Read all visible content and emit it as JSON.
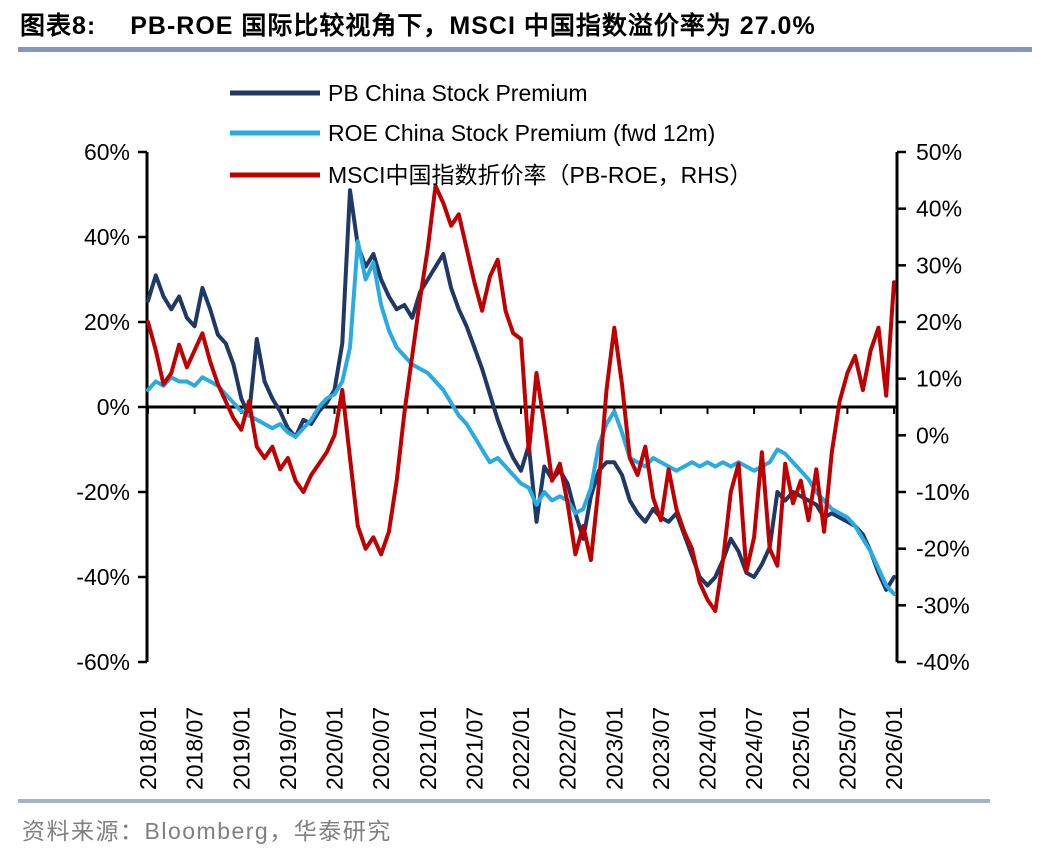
{
  "title": {
    "prefix": "图表8:",
    "text": "PB-ROE 国际比较视角下，MSCI 中国指数溢价率为 27.0%"
  },
  "source": {
    "label": "资料来源：Bloomberg，华泰研究"
  },
  "colors": {
    "pb_line": "#1F3864",
    "roe_line": "#29ABE2",
    "msci_line": "#C00000",
    "title_rule": "#8299B6",
    "bottom_rule": "#A3B5CB",
    "source_text": "#808080",
    "axis": "#000000"
  },
  "chart_data": {
    "type": "line",
    "title": "PB-ROE 国际比较视角下，MSCI 中国指数溢价率为 27.0%",
    "x_start": "2018/01",
    "x_interval": "monthly",
    "x_tick_labels": [
      "2018/01",
      "2018/07",
      "2019/01",
      "2019/07",
      "2020/01",
      "2020/07",
      "2021/01",
      "2021/07",
      "2022/01",
      "2022/07",
      "2023/01",
      "2023/07",
      "2024/01",
      "2024/07",
      "2025/01",
      "2025/07",
      "2026/01"
    ],
    "left_axis": {
      "tick_labels": [
        "60%",
        "40%",
        "20%",
        "0%",
        "-20%",
        "-40%",
        "-60%"
      ],
      "range": [
        -60,
        60
      ],
      "unit": "%"
    },
    "right_axis": {
      "tick_labels": [
        "50%",
        "40%",
        "30%",
        "20%",
        "10%",
        "0%",
        "-10%",
        "-20%",
        "-30%",
        "-40%"
      ],
      "range": [
        -40,
        50
      ],
      "unit": "%"
    },
    "grid": "off",
    "legend_position": "top",
    "series": [
      {
        "name": "PB China Stock Premium",
        "axis": "left",
        "color": "#1F3864",
        "values": [
          25,
          31,
          26,
          23,
          26,
          21,
          19,
          28,
          23,
          17,
          15,
          10,
          2,
          -2,
          16,
          6,
          2,
          -1,
          -5,
          -7,
          -3,
          -4,
          -1,
          1,
          4,
          15,
          51,
          38,
          33,
          36,
          30,
          26,
          23,
          24,
          21,
          27,
          30,
          33,
          36,
          28,
          23,
          19,
          14,
          9,
          3,
          -3,
          -8,
          -12,
          -15,
          -9,
          -27,
          -14,
          -17,
          -15,
          -18,
          -25,
          -31,
          -21,
          -15,
          -13,
          -13,
          -16,
          -22,
          -25,
          -27,
          -24,
          -26,
          -27,
          -25,
          -30,
          -35,
          -40,
          -42,
          -40,
          -36,
          -31,
          -34,
          -39,
          -40,
          -37,
          -33,
          -20,
          -22,
          -20,
          -21,
          -22,
          -23,
          -26,
          -25,
          -26,
          -27,
          -28,
          -30,
          -34,
          -39,
          -43,
          -40
        ]
      },
      {
        "name": "ROE China Stock Premium (fwd 12m)",
        "axis": "left",
        "color": "#29ABE2",
        "values": [
          4,
          6,
          5,
          7,
          6,
          6,
          5,
          7,
          6,
          5,
          3,
          1,
          -1,
          -2,
          -3,
          -4,
          -5,
          -4,
          -6,
          -7,
          -5,
          -3,
          0,
          2,
          3,
          6,
          14,
          39,
          30,
          34,
          24,
          18,
          14,
          12,
          10,
          9,
          8,
          6,
          4,
          1,
          -2,
          -4,
          -7,
          -10,
          -13,
          -12,
          -14,
          -16,
          -18,
          -19,
          -23,
          -20,
          -22,
          -21,
          -22,
          -25,
          -24,
          -19,
          -9,
          -4,
          -1,
          -6,
          -12,
          -13,
          -14,
          -12,
          -13,
          -14,
          -15,
          -14,
          -13,
          -14,
          -13,
          -14,
          -13,
          -14,
          -13,
          -14,
          -15,
          -14,
          -13,
          -10,
          -11,
          -13,
          -15,
          -17,
          -20,
          -22,
          -24,
          -25,
          -26,
          -28,
          -31,
          -34,
          -38,
          -42,
          -44
        ]
      },
      {
        "name": "MSCI中国指数折价率（PB-ROE，RHS）",
        "axis": "right",
        "color": "#C00000",
        "values": [
          20,
          15,
          9,
          11,
          16,
          12,
          15,
          18,
          13,
          9,
          6,
          3,
          1,
          6,
          -2,
          -4,
          -2,
          -6,
          -4,
          -8,
          -10,
          -7,
          -5,
          -3,
          0,
          8,
          -4,
          -16,
          -20,
          -18,
          -21,
          -17,
          -8,
          4,
          14,
          24,
          33,
          44,
          41,
          37,
          39,
          33,
          27,
          22,
          28,
          31,
          22,
          18,
          17,
          -3,
          11,
          2,
          -8,
          -5,
          -12,
          -21,
          -16,
          -22,
          -9,
          8,
          19,
          9,
          -4,
          -7,
          -2,
          -11,
          -15,
          -6,
          -13,
          -17,
          -20,
          -26,
          -29,
          -31,
          -22,
          -10,
          -5,
          -24,
          -18,
          -3,
          -20,
          -23,
          -5,
          -12,
          -8,
          -15,
          -6,
          -17,
          -3,
          6,
          11,
          14,
          8,
          15,
          19,
          7,
          27
        ]
      }
    ]
  }
}
